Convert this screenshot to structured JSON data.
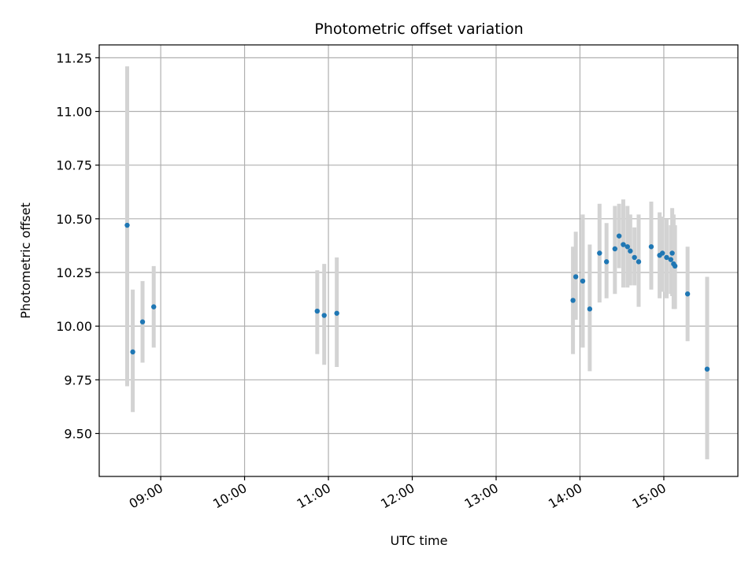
{
  "chart_data": {
    "type": "scatter",
    "title": "Photometric offset variation",
    "xlabel": "UTC time",
    "ylabel": "Photometric offset",
    "x_axis_type": "time",
    "xlim": [
      "08:16",
      "15:53"
    ],
    "ylim": [
      9.3,
      11.31
    ],
    "x_ticks": [
      "09:00",
      "10:00",
      "11:00",
      "12:00",
      "13:00",
      "14:00",
      "15:00"
    ],
    "y_ticks": [
      9.5,
      9.75,
      10.0,
      10.25,
      10.5,
      10.75,
      11.0,
      11.25
    ],
    "y_tick_labels": [
      "9.50",
      "9.75",
      "10.00",
      "10.25",
      "10.50",
      "10.75",
      "11.00",
      "11.25"
    ],
    "grid": true,
    "marker_color": "#1f77b4",
    "errorbar_color": "#d3d3d3",
    "points": [
      {
        "t": "08:36",
        "y": 10.47,
        "lo": 9.72,
        "hi": 11.21
      },
      {
        "t": "08:40",
        "y": 9.88,
        "lo": 9.6,
        "hi": 10.17
      },
      {
        "t": "08:47",
        "y": 10.02,
        "lo": 9.83,
        "hi": 10.21
      },
      {
        "t": "08:55",
        "y": 10.09,
        "lo": 9.9,
        "hi": 10.28
      },
      {
        "t": "10:52",
        "y": 10.07,
        "lo": 9.87,
        "hi": 10.26
      },
      {
        "t": "10:57",
        "y": 10.05,
        "lo": 9.82,
        "hi": 10.29
      },
      {
        "t": "11:06",
        "y": 10.06,
        "lo": 9.81,
        "hi": 10.32
      },
      {
        "t": "13:55",
        "y": 10.12,
        "lo": 9.87,
        "hi": 10.37
      },
      {
        "t": "13:57",
        "y": 10.23,
        "lo": 10.03,
        "hi": 10.44
      },
      {
        "t": "14:02",
        "y": 10.21,
        "lo": 9.9,
        "hi": 10.52
      },
      {
        "t": "14:07",
        "y": 10.08,
        "lo": 9.79,
        "hi": 10.38
      },
      {
        "t": "14:14",
        "y": 10.34,
        "lo": 10.11,
        "hi": 10.57
      },
      {
        "t": "14:19",
        "y": 10.3,
        "lo": 10.13,
        "hi": 10.48
      },
      {
        "t": "14:25",
        "y": 10.36,
        "lo": 10.15,
        "hi": 10.56
      },
      {
        "t": "14:28",
        "y": 10.42,
        "lo": 10.27,
        "hi": 10.57
      },
      {
        "t": "14:31",
        "y": 10.38,
        "lo": 10.18,
        "hi": 10.59
      },
      {
        "t": "14:34",
        "y": 10.37,
        "lo": 10.18,
        "hi": 10.56
      },
      {
        "t": "14:36",
        "y": 10.35,
        "lo": 10.19,
        "hi": 10.52
      },
      {
        "t": "14:39",
        "y": 10.32,
        "lo": 10.19,
        "hi": 10.46
      },
      {
        "t": "14:42",
        "y": 10.3,
        "lo": 10.09,
        "hi": 10.52
      },
      {
        "t": "14:51",
        "y": 10.37,
        "lo": 10.17,
        "hi": 10.58
      },
      {
        "t": "14:57",
        "y": 10.33,
        "lo": 10.13,
        "hi": 10.53
      },
      {
        "t": "14:59",
        "y": 10.34,
        "lo": 10.16,
        "hi": 10.51
      },
      {
        "t": "15:02",
        "y": 10.32,
        "lo": 10.13,
        "hi": 10.5
      },
      {
        "t": "15:05",
        "y": 10.31,
        "lo": 10.15,
        "hi": 10.47
      },
      {
        "t": "15:06",
        "y": 10.34,
        "lo": 10.14,
        "hi": 10.55
      },
      {
        "t": "15:07",
        "y": 10.29,
        "lo": 10.08,
        "hi": 10.52
      },
      {
        "t": "15:08",
        "y": 10.28,
        "lo": 10.08,
        "hi": 10.47
      },
      {
        "t": "15:17",
        "y": 10.15,
        "lo": 9.93,
        "hi": 10.37
      },
      {
        "t": "15:31",
        "y": 9.8,
        "lo": 9.38,
        "hi": 10.23
      }
    ]
  }
}
